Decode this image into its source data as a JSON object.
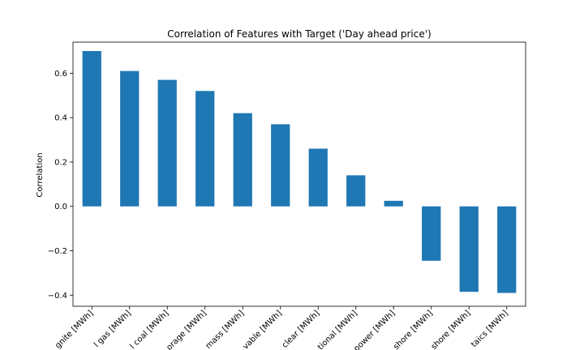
{
  "chart_data": {
    "type": "bar",
    "title": "Correlation of Features with Target ('Day ahead price')",
    "xlabel": "",
    "ylabel": "Correlation",
    "ylim": [
      -0.45,
      0.74
    ],
    "yticks": [
      -0.4,
      -0.2,
      0.0,
      0.2,
      0.4,
      0.6
    ],
    "ytick_labels": [
      "−0.4",
      "−0.2",
      "0.0",
      "0.2",
      "0.4",
      "0.6"
    ],
    "grid": false,
    "legend": "none",
    "bar_color": "#1f77b4",
    "categories": [
      "gnite [MWh]",
      "l gas [MWh]",
      "l coal [MWh]",
      "orage [MWh]",
      "mass [MWh]",
      "vable [MWh]",
      "clear [MWh]",
      "tional [MWh]",
      "power [MWh]",
      "shore [MWh]",
      "shore [MWh]",
      "taics [MWh]"
    ],
    "values": [
      0.7,
      0.61,
      0.57,
      0.52,
      0.42,
      0.37,
      0.26,
      0.14,
      0.025,
      -0.245,
      -0.385,
      -0.39
    ]
  }
}
